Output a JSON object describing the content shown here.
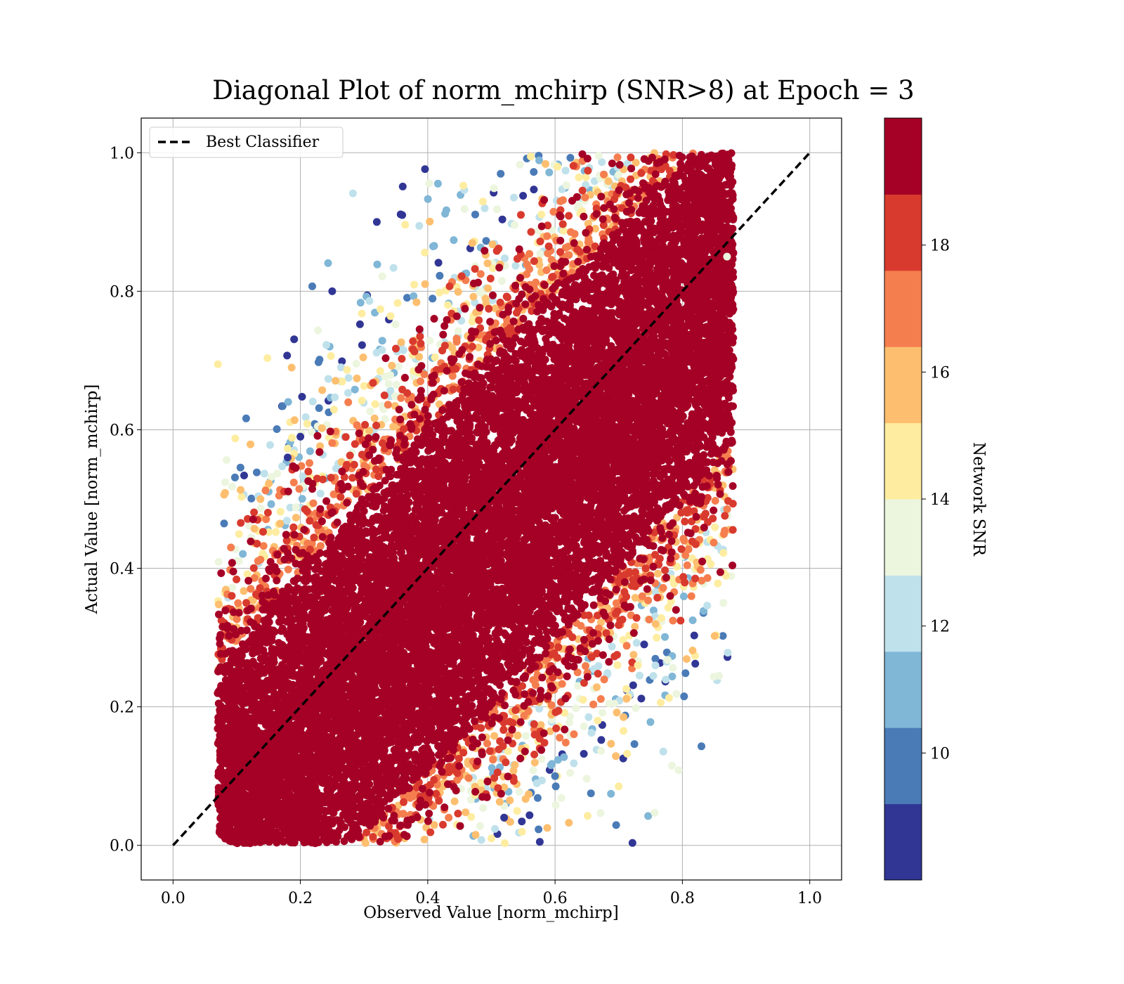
{
  "chart_data": {
    "type": "scatter",
    "title": "Diagonal Plot of norm_mchirp (SNR>8) at Epoch = 3",
    "xlabel": "Observed Value [norm_mchirp]",
    "ylabel": "Actual Value [norm_mchirp]",
    "xlim": [
      -0.05,
      1.05
    ],
    "ylim": [
      -0.05,
      1.05
    ],
    "x_ticks": [
      "0.0",
      "0.2",
      "0.4",
      "0.6",
      "0.8",
      "1.0"
    ],
    "y_ticks": [
      "0.0",
      "0.2",
      "0.4",
      "0.6",
      "0.8",
      "1.0"
    ],
    "x_tick_values": [
      0.0,
      0.2,
      0.4,
      0.6,
      0.8,
      1.0
    ],
    "y_tick_values": [
      0.0,
      0.2,
      0.4,
      0.6,
      0.8,
      1.0
    ],
    "grid": true,
    "legend": {
      "position": "top-left",
      "entries": [
        "Best Classifier"
      ]
    },
    "reference_line": {
      "name": "Best Classifier",
      "style": "dashed",
      "color": "#000000",
      "x": [
        0.0,
        1.0
      ],
      "y": [
        0.0,
        1.0
      ]
    },
    "scatter": {
      "color_variable": "Network SNR",
      "description_points": [
        {
          "x": 0.32,
          "y": 0.9,
          "snr": 8.5
        },
        {
          "x": 0.25,
          "y": 0.8,
          "snr": 8.5
        },
        {
          "x": 0.2,
          "y": 0.59,
          "snr": 8.6
        },
        {
          "x": 0.18,
          "y": 0.56,
          "snr": 8.4
        },
        {
          "x": 0.36,
          "y": 0.91,
          "snr": 8.7
        },
        {
          "x": 0.79,
          "y": 0.34,
          "snr": 19.5
        },
        {
          "x": 0.74,
          "y": 0.29,
          "snr": 8.6
        },
        {
          "x": 0.6,
          "y": 0.1,
          "snr": 10.2
        },
        {
          "x": 0.52,
          "y": 0.04,
          "snr": 8.8
        },
        {
          "x": 0.5,
          "y": 0.01,
          "snr": 15.0
        },
        {
          "x": 0.73,
          "y": 0.26,
          "snr": 15.0
        },
        {
          "x": 0.87,
          "y": 0.85,
          "snr": 13.5
        },
        {
          "x": 0.08,
          "y": 0.1,
          "snr": 19.5
        },
        {
          "x": 0.85,
          "y": 0.96,
          "snr": 19.5
        }
      ],
      "approx_points": 20000
    },
    "colorbar": {
      "label": "Network SNR",
      "range": [
        8,
        20
      ],
      "ticks": [
        "10",
        "12",
        "14",
        "16",
        "18"
      ],
      "tick_values": [
        10,
        12,
        14,
        16,
        18
      ],
      "bins": [
        {
          "from": 8.0,
          "to": 9.2,
          "color": "#313695"
        },
        {
          "from": 9.2,
          "to": 10.4,
          "color": "#4a7bb7"
        },
        {
          "from": 10.4,
          "to": 11.6,
          "color": "#80b6d6"
        },
        {
          "from": 11.6,
          "to": 12.8,
          "color": "#bfe1eb"
        },
        {
          "from": 12.8,
          "to": 14.0,
          "color": "#ecf5de"
        },
        {
          "from": 14.0,
          "to": 15.2,
          "color": "#feeda0"
        },
        {
          "from": 15.2,
          "to": 16.4,
          "color": "#fdbf6f"
        },
        {
          "from": 16.4,
          "to": 17.6,
          "color": "#f57e4f"
        },
        {
          "from": 17.6,
          "to": 18.8,
          "color": "#d93a2e"
        },
        {
          "from": 18.8,
          "to": 20.0,
          "color": "#a50026"
        }
      ]
    }
  }
}
